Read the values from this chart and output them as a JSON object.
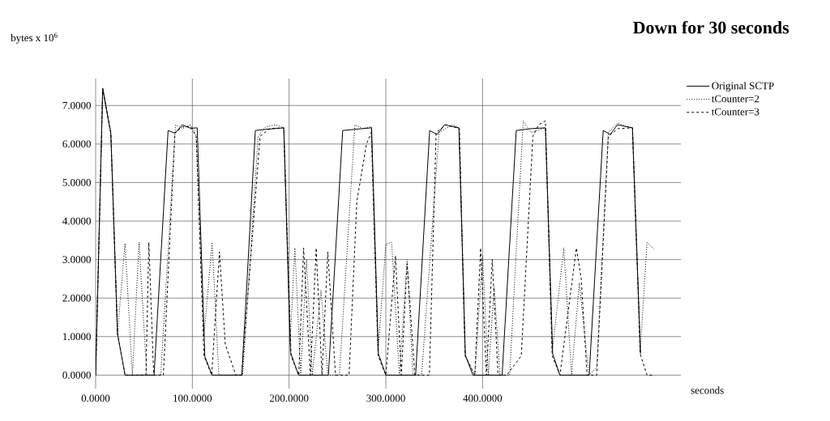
{
  "chart_data": {
    "type": "line",
    "title": "Down for 30 seconds",
    "xlabel": "seconds",
    "ylabel": "bytes x 10$^{6}$",
    "xlim": [
      0,
      605
    ],
    "ylim": [
      -0.35,
      7.7
    ],
    "xticks": [
      {
        "value": 0,
        "label": "0.0000"
      },
      {
        "value": 100,
        "label": "100.0000"
      },
      {
        "value": 200,
        "label": "200.0000"
      },
      {
        "value": 300,
        "label": "300.0000"
      },
      {
        "value": 400,
        "label": "400.0000"
      }
    ],
    "yticks": [
      {
        "value": 0,
        "label": "0.0000"
      },
      {
        "value": 1,
        "label": "1.0000"
      },
      {
        "value": 2,
        "label": "2.0000"
      },
      {
        "value": 3,
        "label": "3.0000"
      },
      {
        "value": 4,
        "label": "4.0000"
      },
      {
        "value": 5,
        "label": "5.0000"
      },
      {
        "value": 6,
        "label": "6.0000"
      },
      {
        "value": 7,
        "label": "7.0000"
      }
    ],
    "grid": true,
    "legend": "right",
    "series": [
      {
        "name": "Original SCTP",
        "color": "#000000",
        "line_style": "solid",
        "x": [
          0,
          7.3,
          15.7,
          22.6,
          30.4,
          60.4,
          74.9,
          82.1,
          89.7,
          98,
          105,
          112.9,
          120.4,
          151.1,
          165.1,
          174.9,
          194.5,
          201.4,
          209.8,
          240.6,
          255.4,
          275.5,
          285.3,
          292.3,
          300.1,
          330.8,
          345.3,
          353.1,
          360.7,
          375.5,
          382.2,
          390,
          420.2,
          434.8,
          450.1,
          465,
          472.5,
          480,
          510.2,
          524.7,
          532,
          539.5,
          554.9,
          563.3
        ],
        "values": [
          0,
          7.44,
          6.28,
          1.08,
          0,
          0,
          6.35,
          6.28,
          6.5,
          6.41,
          6.42,
          0.48,
          0,
          0,
          6.35,
          6.38,
          6.42,
          0.59,
          0,
          0,
          6.35,
          6.4,
          6.42,
          0.55,
          0,
          0,
          6.35,
          6.25,
          6.5,
          6.42,
          0.52,
          0,
          0,
          6.35,
          6.4,
          6.42,
          0.55,
          0,
          0,
          6.35,
          6.25,
          6.5,
          6.42,
          0.55
        ]
      },
      {
        "name": "tCounter=2",
        "color": "#000000",
        "line_style": "dotted",
        "x": [
          0,
          7.3,
          15.7,
          22.6,
          30.4,
          38,
          44.9,
          52.8,
          67.3,
          82.6,
          89.7,
          98,
          103.7,
          112,
          120.4,
          127.4,
          140,
          152,
          168,
          176,
          186,
          194.5,
          201,
          206,
          212,
          218,
          224,
          233,
          240,
          252,
          268,
          276,
          285,
          292,
          300,
          306,
          314,
          322,
          328,
          337,
          355,
          362,
          370,
          376,
          382,
          392,
          400,
          406,
          412,
          418,
          428,
          442,
          450,
          465,
          472,
          484,
          492,
          500,
          510,
          518,
          530,
          540,
          548,
          555,
          563,
          570,
          577
        ],
        "values": [
          0,
          7.44,
          6.28,
          1.08,
          3.42,
          0,
          3.45,
          0,
          0,
          6.5,
          6.4,
          6.5,
          6.25,
          1.0,
          3.45,
          0,
          0,
          0,
          6.2,
          6.45,
          6.5,
          6.42,
          0.8,
          3.3,
          0,
          3.0,
          0,
          2.2,
          0,
          0,
          6.5,
          6.4,
          6.45,
          0.6,
          3.4,
          3.45,
          0,
          3.0,
          0,
          0,
          6.3,
          6.4,
          6.5,
          6.4,
          0.5,
          0,
          3.1,
          0,
          2.3,
          0,
          0,
          6.6,
          6.3,
          6.42,
          0.6,
          3.3,
          0,
          2.4,
          0,
          0.2,
          6.3,
          6.55,
          6.45,
          6.42,
          0.6,
          3.45,
          3.28
        ]
      },
      {
        "name": "tCounter=3",
        "color": "#000000",
        "line_style": "dashed",
        "x": [
          0,
          7.3,
          15.7,
          22.6,
          30.4,
          52,
          55,
          60,
          70,
          82,
          90,
          98,
          104,
          112,
          120,
          128,
          134,
          145,
          151,
          170,
          180,
          194.5,
          202,
          210,
          215,
          222,
          228,
          234,
          240,
          248,
          262,
          270,
          280,
          285,
          292,
          300,
          310,
          316,
          322,
          330,
          345,
          352,
          362,
          376,
          382,
          392,
          398,
          404,
          410,
          416,
          425,
          440,
          452,
          458,
          465,
          472,
          480,
          497,
          502,
          508,
          518,
          530,
          540,
          555,
          563,
          570,
          577
        ],
        "values": [
          0,
          7.44,
          6.28,
          1.08,
          0,
          0,
          3.45,
          0,
          0,
          6.3,
          6.45,
          6.45,
          6.2,
          0.5,
          0,
          3.2,
          0.8,
          0,
          0,
          6.2,
          6.4,
          6.42,
          0.5,
          0,
          3.3,
          0,
          3.3,
          0,
          3.2,
          0,
          0,
          4.5,
          6.0,
          6.3,
          0.5,
          0,
          3.1,
          0,
          2.9,
          0,
          0,
          6.3,
          6.5,
          6.4,
          0.5,
          0,
          3.3,
          0,
          3.0,
          0,
          0,
          0.5,
          6.2,
          6.5,
          6.6,
          0.5,
          0,
          3.3,
          2.5,
          0,
          0,
          6.2,
          6.4,
          6.42,
          0.55,
          0,
          0
        ]
      }
    ]
  }
}
